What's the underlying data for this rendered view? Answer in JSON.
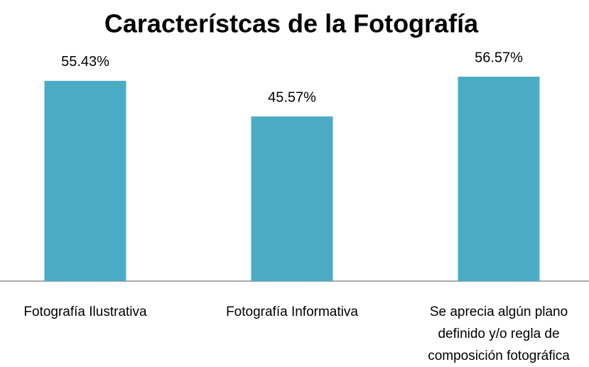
{
  "chart_data": {
    "type": "bar",
    "title": "Característcas de la Fotografía",
    "categories": [
      "Fotografía Ilustrativa",
      "Fotografía Informativa",
      "Se aprecia algún plano definido y/o regla de composición fotográfica"
    ],
    "values": [
      55.43,
      45.57,
      56.57
    ],
    "value_labels": [
      "55.43%",
      "45.57%",
      "56.57%"
    ],
    "color": "#4bacc6",
    "ylim": [
      0,
      60
    ]
  }
}
